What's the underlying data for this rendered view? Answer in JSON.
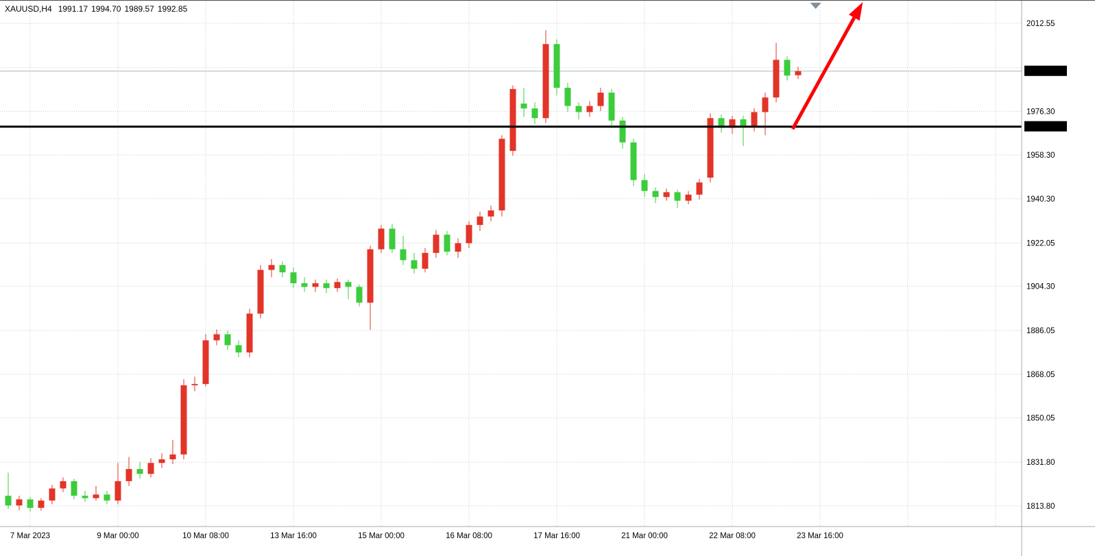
{
  "header": {
    "symbol_period": "XAUUSD,H4",
    "open": "1991.17",
    "high": "1994.70",
    "low": "1989.57",
    "close": "1992.85"
  },
  "colors": {
    "background": "#ffffff",
    "bull": "#e23428",
    "bear": "#3ccc3c",
    "grid": "#c9c9c9",
    "separator": "#aaaaaa",
    "axis_text": "#000000",
    "bid_line": "#a3b8c8",
    "support_line": "#000000",
    "arrow": "#f90606",
    "label_box_bg": "#000000",
    "label_box_text": "#ffffff",
    "shift_marker": "#7f909e"
  },
  "chart_data": {
    "type": "candlestick",
    "symbol": "XAUUSD",
    "timeframe": "H4",
    "title": "",
    "xlabel": "",
    "ylabel": "",
    "current_bar": {
      "open": 1991.17,
      "high": 1994.7,
      "low": 1989.57,
      "close": 1992.85
    },
    "y_axis": {
      "min": 1808.0,
      "max": 2016.0,
      "ticks": [
        {
          "price": 2012.55,
          "label": "2012.55"
        },
        {
          "price": 1994.3,
          "label": ""
        },
        {
          "price": 1976.3,
          "label": "1976.30"
        },
        {
          "price": 1958.3,
          "label": "1958.30"
        },
        {
          "price": 1940.3,
          "label": "1940.30"
        },
        {
          "price": 1922.05,
          "label": "1922.05"
        },
        {
          "price": 1904.3,
          "label": "1904.30"
        },
        {
          "price": 1886.05,
          "label": "1886.05"
        },
        {
          "price": 1868.05,
          "label": "1868.05"
        },
        {
          "price": 1850.05,
          "label": "1850.05"
        },
        {
          "price": 1831.8,
          "label": "1831.80"
        },
        {
          "price": 1813.8,
          "label": "1813.80"
        }
      ]
    },
    "x_axis": {
      "ticks": [
        {
          "bar": 2,
          "label": "7 Mar 2023"
        },
        {
          "bar": 10,
          "label": "9 Mar 00:00"
        },
        {
          "bar": 18,
          "label": "10 Mar 08:00"
        },
        {
          "bar": 26,
          "label": "13 Mar 16:00"
        },
        {
          "bar": 34,
          "label": "15 Mar 00:00"
        },
        {
          "bar": 42,
          "label": "16 Mar 08:00"
        },
        {
          "bar": 50,
          "label": "17 Mar 16:00"
        },
        {
          "bar": 58,
          "label": "21 Mar 00:00"
        },
        {
          "bar": 66,
          "label": "22 Mar 08:00"
        },
        {
          "bar": 74,
          "label": "23 Mar 16:00"
        },
        {
          "bar": 82,
          "label": ""
        },
        {
          "bar": 90,
          "label": ""
        }
      ]
    },
    "price_lines": [
      {
        "kind": "support",
        "price": 1970.0,
        "label": "1970.00",
        "width": 3
      },
      {
        "kind": "bid",
        "price": 1992.85,
        "label": "1992.85",
        "width": 1
      }
    ],
    "annotations": [
      {
        "type": "arrow",
        "from": {
          "bar": 71.5,
          "price": 1969.0
        },
        "to": {
          "bar": 77.9,
          "price": 2021.3
        }
      }
    ],
    "shift_marker": {
      "bar": 73.6
    },
    "candles": [
      [
        1818.0,
        1827.5,
        1812.5,
        1814.0
      ],
      [
        1814.0,
        1818.0,
        1812.0,
        1816.5
      ],
      [
        1816.5,
        1817.5,
        1811.5,
        1813.0
      ],
      [
        1813.0,
        1817.0,
        1811.8,
        1816.0
      ],
      [
        1816.0,
        1822.5,
        1814.5,
        1821.0
      ],
      [
        1821.0,
        1825.5,
        1819.5,
        1824.0
      ],
      [
        1824.0,
        1825.0,
        1816.5,
        1818.0
      ],
      [
        1818.0,
        1820.0,
        1815.5,
        1817.0
      ],
      [
        1817.0,
        1822.0,
        1816.0,
        1818.5
      ],
      [
        1818.5,
        1820.0,
        1814.5,
        1816.0
      ],
      [
        1816.0,
        1831.5,
        1814.5,
        1824.0
      ],
      [
        1824.0,
        1834.0,
        1822.0,
        1829.0
      ],
      [
        1829.0,
        1832.0,
        1825.0,
        1827.0
      ],
      [
        1827.0,
        1833.5,
        1825.5,
        1831.5
      ],
      [
        1831.5,
        1835.5,
        1829.5,
        1833.0
      ],
      [
        1833.0,
        1841.0,
        1831.0,
        1835.0
      ],
      [
        1835.0,
        1866.0,
        1833.0,
        1863.5
      ],
      [
        1863.5,
        1867.0,
        1861.0,
        1864.0
      ],
      [
        1864.0,
        1884.5,
        1863.0,
        1882.0
      ],
      [
        1882.0,
        1886.5,
        1880.0,
        1884.5
      ],
      [
        1884.5,
        1886.0,
        1878.0,
        1880.0
      ],
      [
        1880.0,
        1882.0,
        1875.0,
        1877.0
      ],
      [
        1877.0,
        1895.0,
        1875.0,
        1893.0
      ],
      [
        1893.0,
        1913.0,
        1891.0,
        1911.0
      ],
      [
        1911.0,
        1915.5,
        1908.0,
        1913.0
      ],
      [
        1913.0,
        1914.5,
        1908.0,
        1910.0
      ],
      [
        1910.0,
        1912.0,
        1903.5,
        1905.5
      ],
      [
        1905.5,
        1908.0,
        1902.0,
        1904.0
      ],
      [
        1904.0,
        1907.0,
        1902.0,
        1905.5
      ],
      [
        1905.5,
        1907.0,
        1901.5,
        1903.5
      ],
      [
        1903.5,
        1907.5,
        1902.0,
        1906.0
      ],
      [
        1906.0,
        1907.0,
        1899.0,
        1904.0
      ],
      [
        1904.0,
        1905.0,
        1896.0,
        1897.5
      ],
      [
        1897.5,
        1921.0,
        1886.3,
        1919.5
      ],
      [
        1919.5,
        1929.5,
        1918.0,
        1928.0
      ],
      [
        1928.0,
        1930.0,
        1918.0,
        1919.5
      ],
      [
        1919.5,
        1925.0,
        1913.0,
        1915.0
      ],
      [
        1915.0,
        1918.0,
        1909.5,
        1911.5
      ],
      [
        1911.5,
        1920.0,
        1910.0,
        1918.0
      ],
      [
        1918.0,
        1927.5,
        1916.0,
        1925.5
      ],
      [
        1925.5,
        1927.0,
        1917.0,
        1918.5
      ],
      [
        1918.5,
        1924.0,
        1916.0,
        1922.0
      ],
      [
        1922.0,
        1931.0,
        1920.0,
        1929.5
      ],
      [
        1929.5,
        1935.0,
        1927.0,
        1933.0
      ],
      [
        1933.0,
        1937.5,
        1931.0,
        1935.5
      ],
      [
        1935.5,
        1966.5,
        1933.0,
        1965.0
      ],
      [
        1960.0,
        1987.0,
        1958.0,
        1985.5
      ],
      [
        1979.5,
        1986.0,
        1974.0,
        1977.5
      ],
      [
        1977.5,
        1980.0,
        1971.0,
        1973.5
      ],
      [
        1973.5,
        2009.7,
        1971.5,
        2004.0
      ],
      [
        2004.0,
        2006.0,
        1983.0,
        1986.0
      ],
      [
        1986.0,
        1988.0,
        1976.0,
        1978.5
      ],
      [
        1978.5,
        1980.0,
        1973.0,
        1976.0
      ],
      [
        1976.0,
        1980.5,
        1974.0,
        1978.5
      ],
      [
        1978.5,
        1986.0,
        1976.5,
        1984.0
      ],
      [
        1984.0,
        1985.5,
        1970.0,
        1972.5
      ],
      [
        1972.5,
        1974.0,
        1961.0,
        1963.5
      ],
      [
        1963.5,
        1965.0,
        1945.5,
        1948.0
      ],
      [
        1948.0,
        1950.5,
        1941.0,
        1943.5
      ],
      [
        1943.5,
        1945.0,
        1938.5,
        1941.0
      ],
      [
        1941.0,
        1944.5,
        1939.5,
        1943.0
      ],
      [
        1943.0,
        1944.0,
        1936.5,
        1939.5
      ],
      [
        1939.5,
        1943.5,
        1938.0,
        1942.0
      ],
      [
        1942.0,
        1948.5,
        1940.0,
        1947.0
      ],
      [
        1949.0,
        1975.5,
        1947.0,
        1973.5
      ],
      [
        1973.5,
        1975.0,
        1967.5,
        1969.5
      ],
      [
        1969.5,
        1974.5,
        1967.0,
        1973.0
      ],
      [
        1973.0,
        1974.5,
        1962.0,
        1970.0
      ],
      [
        1970.0,
        1977.5,
        1968.0,
        1976.0
      ],
      [
        1976.0,
        1984.0,
        1966.5,
        1982.0
      ],
      [
        1982.0,
        2004.5,
        1980.0,
        1997.5
      ],
      [
        1997.5,
        1999.0,
        1989.0,
        1991.0
      ],
      [
        1991.17,
        1994.7,
        1989.57,
        1992.85
      ]
    ]
  }
}
